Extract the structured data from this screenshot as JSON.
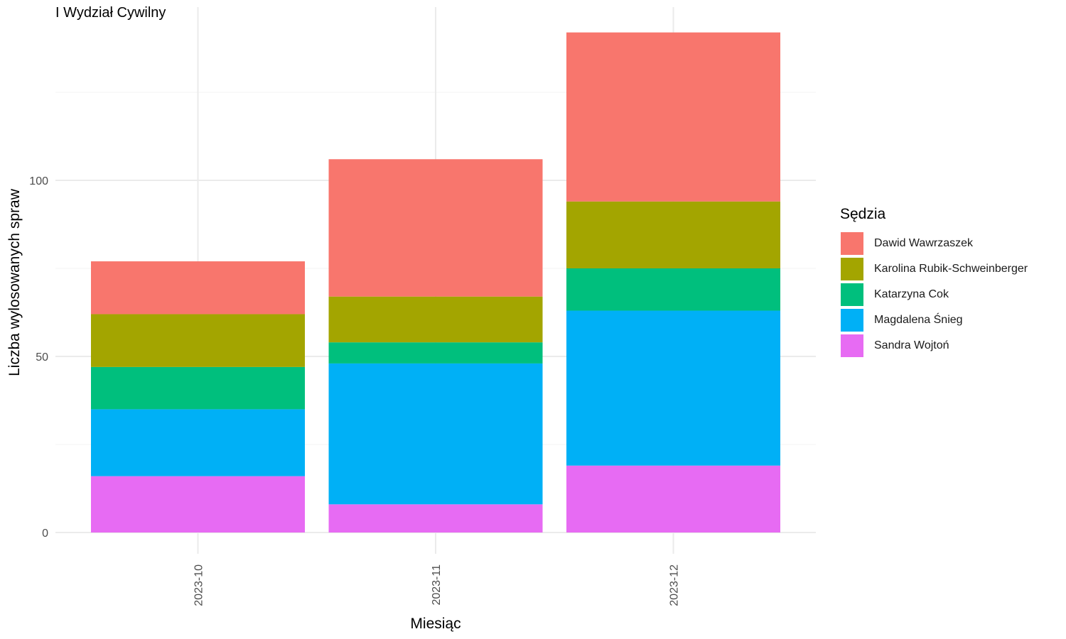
{
  "chart_data": {
    "type": "bar",
    "stacked": true,
    "title": "I Wydział Cywilny",
    "xlabel": "Miesiąc",
    "ylabel": "Liczba wylosowanych spraw",
    "categories": [
      "2023-10",
      "2023-11",
      "2023-12"
    ],
    "ylim": [
      0,
      145
    ],
    "yticks": [
      0,
      50,
      100
    ],
    "grid": true,
    "legend_title": "Sędzia",
    "legend_position": "right",
    "series": [
      {
        "name": "Dawid Wawrzaszek",
        "color": "#F8766D",
        "values": [
          15,
          39,
          48
        ]
      },
      {
        "name": "Karolina Rubik-Schweinberger",
        "color": "#A3A500",
        "values": [
          15,
          13,
          19
        ]
      },
      {
        "name": "Katarzyna Cok",
        "color": "#00BF7D",
        "values": [
          12,
          6,
          12
        ]
      },
      {
        "name": "Magdalena Śnieg",
        "color": "#00B0F6",
        "values": [
          19,
          40,
          44
        ]
      },
      {
        "name": "Sandra Wojtoń",
        "color": "#E76BF3",
        "values": [
          16,
          8,
          19
        ]
      }
    ]
  }
}
